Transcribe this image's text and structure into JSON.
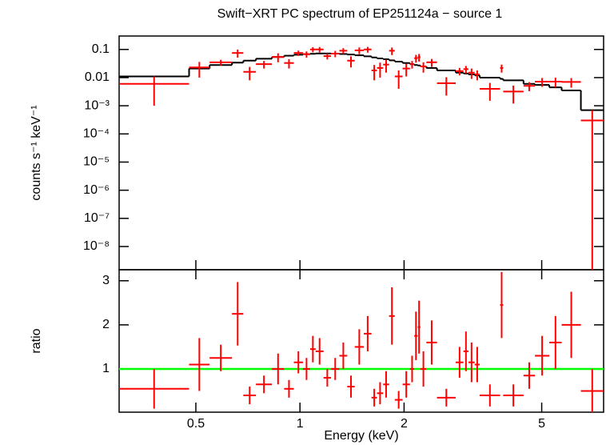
{
  "chart_data": [
    {
      "type": "errorbar",
      "title": "Swift−XRT PC spectrum of EP251124a − source 1",
      "ylabel": "counts s⁻¹ keV⁻¹",
      "xlog": true,
      "ylog": true,
      "xlim": [
        0.3,
        7.55
      ],
      "ylim": [
        1.5e-09,
        0.3
      ],
      "yticks": [
        0.1,
        0.01,
        {
          "value": 0.001,
          "label": "10⁻³"
        },
        {
          "value": 0.0001,
          "label": "10⁻⁴"
        },
        {
          "value": 1e-05,
          "label": "10⁻⁵"
        },
        {
          "value": 1e-06,
          "label": "10⁻⁶"
        },
        {
          "value": 1e-07,
          "label": "10⁻⁷"
        },
        {
          "value": 1e-08,
          "label": "10⁻⁸"
        }
      ],
      "color": "#ff0000",
      "model_color": "#000000",
      "x_low": [
        0.3,
        0.478,
        0.548,
        0.636,
        0.686,
        0.746,
        0.83,
        0.9,
        0.96,
        1.02,
        1.07,
        1.11,
        1.17,
        1.23,
        1.3,
        1.37,
        1.44,
        1.53,
        1.61,
        1.67,
        1.74,
        1.81,
        1.88,
        1.98,
        2.08,
        2.14,
        2.19,
        2.23,
        2.32,
        2.49,
        2.82,
        2.97,
        3.07,
        3.2,
        3.31,
        3.79,
        3.87,
        4.43,
        4.78,
        5.26,
        5.71,
        6.49
      ],
      "x_high": [
        0.478,
        0.548,
        0.636,
        0.686,
        0.746,
        0.83,
        0.9,
        0.96,
        1.02,
        1.07,
        1.11,
        1.17,
        1.23,
        1.3,
        1.37,
        1.44,
        1.53,
        1.61,
        1.67,
        1.74,
        1.81,
        1.88,
        1.98,
        2.08,
        2.14,
        2.19,
        2.23,
        2.32,
        2.49,
        2.82,
        2.97,
        3.07,
        3.2,
        3.31,
        3.79,
        3.87,
        4.43,
        4.78,
        5.26,
        5.71,
        6.49,
        7.55
      ],
      "values": [
        0.006,
        0.023,
        0.035,
        0.075,
        0.016,
        0.03,
        0.054,
        0.033,
        0.075,
        0.068,
        0.1,
        0.1,
        0.058,
        0.071,
        0.09,
        0.04,
        0.093,
        0.1,
        0.018,
        0.022,
        0.029,
        0.09,
        0.011,
        0.021,
        0.03,
        0.049,
        0.053,
        0.025,
        0.035,
        0.0063,
        0.017,
        0.02,
        0.015,
        0.013,
        0.004,
        0.022,
        0.0032,
        0.0051,
        0.0072,
        0.0072,
        0.007,
        0.0003
      ],
      "errors": [
        0.005,
        0.013,
        0.008,
        0.024,
        0.008,
        0.009,
        0.019,
        0.012,
        0.016,
        0.017,
        0.021,
        0.022,
        0.014,
        0.018,
        0.021,
        0.017,
        0.025,
        0.023,
        0.01,
        0.012,
        0.014,
        0.027,
        0.007,
        0.01,
        0.009,
        0.015,
        0.016,
        0.01,
        0.011,
        0.004,
        0.005,
        0.006,
        0.006,
        0.005,
        0.0025,
        0.007,
        0.002,
        0.0018,
        0.0025,
        0.0027,
        0.0026,
        0.0004
      ],
      "model": [
        0.011,
        0.021,
        0.028,
        0.034,
        0.04,
        0.047,
        0.054,
        0.06,
        0.065,
        0.068,
        0.07,
        0.072,
        0.072,
        0.071,
        0.069,
        0.066,
        0.062,
        0.057,
        0.052,
        0.048,
        0.045,
        0.041,
        0.037,
        0.033,
        0.03,
        0.028,
        0.027,
        0.025,
        0.022,
        0.018,
        0.015,
        0.014,
        0.013,
        0.012,
        0.01,
        0.009,
        0.008,
        0.006,
        0.0055,
        0.0045,
        0.0035,
        0.0007
      ]
    },
    {
      "type": "errorbar",
      "xlabel": "Energy (keV)",
      "ylabel": "ratio",
      "xlog": true,
      "ylog": false,
      "xlim": [
        0.3,
        7.55
      ],
      "xticks": [
        0.5,
        1,
        2,
        5
      ],
      "ylim": [
        0.02,
        3.25
      ],
      "yticks": [
        1,
        2,
        3
      ],
      "color": "#ff0000",
      "reference_line": 1,
      "reference_color": "#00ff00",
      "x_low": [
        0.3,
        0.478,
        0.548,
        0.636,
        0.686,
        0.746,
        0.83,
        0.9,
        0.96,
        1.02,
        1.07,
        1.11,
        1.17,
        1.23,
        1.3,
        1.37,
        1.44,
        1.53,
        1.61,
        1.67,
        1.74,
        1.81,
        1.88,
        1.98,
        2.08,
        2.14,
        2.19,
        2.23,
        2.32,
        2.49,
        2.82,
        2.97,
        3.07,
        3.2,
        3.31,
        3.79,
        3.87,
        4.43,
        4.78,
        5.26,
        5.71,
        6.49
      ],
      "x_high": [
        0.478,
        0.548,
        0.636,
        0.686,
        0.746,
        0.83,
        0.9,
        0.96,
        1.02,
        1.07,
        1.11,
        1.17,
        1.23,
        1.3,
        1.37,
        1.44,
        1.53,
        1.61,
        1.67,
        1.74,
        1.81,
        1.88,
        1.98,
        2.08,
        2.14,
        2.19,
        2.23,
        2.32,
        2.49,
        2.82,
        2.97,
        3.07,
        3.2,
        3.31,
        3.79,
        3.87,
        4.43,
        4.78,
        5.26,
        5.71,
        6.49,
        7.55
      ],
      "values": [
        0.55,
        1.1,
        1.25,
        2.25,
        0.4,
        0.65,
        1.0,
        0.55,
        1.15,
        1.0,
        1.45,
        1.4,
        0.8,
        1.0,
        1.3,
        0.6,
        1.5,
        1.8,
        0.35,
        0.45,
        0.65,
        2.2,
        0.3,
        0.65,
        1.0,
        1.75,
        1.95,
        1.0,
        1.6,
        0.35,
        1.15,
        1.4,
        1.15,
        1.1,
        0.4,
        2.45,
        0.4,
        0.85,
        1.3,
        1.6,
        2.0,
        0.5
      ],
      "errors": [
        0.45,
        0.6,
        0.3,
        0.72,
        0.2,
        0.2,
        0.35,
        0.2,
        0.25,
        0.25,
        0.3,
        0.3,
        0.2,
        0.25,
        0.3,
        0.25,
        0.4,
        0.4,
        0.2,
        0.25,
        0.3,
        0.65,
        0.2,
        0.3,
        0.3,
        0.55,
        0.6,
        0.4,
        0.5,
        0.2,
        0.35,
        0.45,
        0.45,
        0.4,
        0.25,
        0.75,
        0.25,
        0.3,
        0.45,
        0.6,
        0.75,
        0.5
      ]
    }
  ]
}
